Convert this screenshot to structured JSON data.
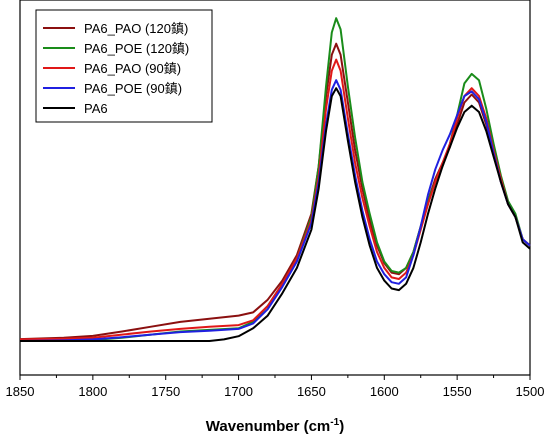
{
  "chart_data": {
    "type": "line",
    "title": "",
    "xlabel": "Wavenumber (cm",
    "xlabel_sup": "-1",
    "xlabel_close": ")",
    "ylabel": "",
    "xlim": [
      1850,
      1500
    ],
    "x_reversed": true,
    "ylim": [
      0,
      100
    ],
    "y_ticks_shown": false,
    "grid": false,
    "legend_position": "top-left",
    "x_ticks": [
      1850,
      1800,
      1750,
      1700,
      1650,
      1600,
      1550,
      1500
    ],
    "series": [
      {
        "name": "PA6_PAO (120鎮)",
        "color": "#8b1010",
        "points": [
          [
            1850,
            0.6
          ],
          [
            1820,
            1
          ],
          [
            1800,
            1.6
          ],
          [
            1780,
            3
          ],
          [
            1760,
            4.5
          ],
          [
            1740,
            6
          ],
          [
            1720,
            7
          ],
          [
            1700,
            8
          ],
          [
            1690,
            9
          ],
          [
            1680,
            13
          ],
          [
            1670,
            19
          ],
          [
            1660,
            27
          ],
          [
            1650,
            40
          ],
          [
            1645,
            55
          ],
          [
            1640,
            77
          ],
          [
            1636,
            90
          ],
          [
            1633,
            93.5
          ],
          [
            1630,
            90
          ],
          [
            1625,
            75
          ],
          [
            1620,
            60
          ],
          [
            1615,
            48
          ],
          [
            1610,
            38
          ],
          [
            1605,
            30
          ],
          [
            1600,
            24.5
          ],
          [
            1595,
            21.5
          ],
          [
            1590,
            21
          ],
          [
            1585,
            23
          ],
          [
            1580,
            28
          ],
          [
            1575,
            36
          ],
          [
            1570,
            44
          ],
          [
            1565,
            51
          ],
          [
            1560,
            56
          ],
          [
            1555,
            61
          ],
          [
            1550,
            68
          ],
          [
            1545,
            75
          ],
          [
            1540,
            77.5
          ],
          [
            1535,
            75
          ],
          [
            1530,
            68
          ],
          [
            1525,
            59
          ],
          [
            1520,
            50
          ],
          [
            1515,
            43
          ],
          [
            1510,
            39
          ],
          [
            1505,
            32
          ],
          [
            1500,
            30
          ]
        ]
      },
      {
        "name": "PA6_POE (120鎮)",
        "color": "#1a8c1a",
        "points": [
          [
            1850,
            0
          ],
          [
            1820,
            0
          ],
          [
            1800,
            0.3
          ],
          [
            1780,
            1
          ],
          [
            1760,
            2
          ],
          [
            1740,
            3
          ],
          [
            1720,
            3.5
          ],
          [
            1700,
            4
          ],
          [
            1690,
            6
          ],
          [
            1680,
            11
          ],
          [
            1670,
            18
          ],
          [
            1660,
            26
          ],
          [
            1650,
            39
          ],
          [
            1645,
            55
          ],
          [
            1640,
            80
          ],
          [
            1636,
            97
          ],
          [
            1633,
            101.5
          ],
          [
            1630,
            98
          ],
          [
            1625,
            80
          ],
          [
            1620,
            64
          ],
          [
            1615,
            50
          ],
          [
            1610,
            40
          ],
          [
            1605,
            31
          ],
          [
            1600,
            25
          ],
          [
            1595,
            22
          ],
          [
            1590,
            21.5
          ],
          [
            1585,
            23
          ],
          [
            1580,
            28
          ],
          [
            1575,
            36
          ],
          [
            1570,
            44
          ],
          [
            1565,
            50
          ],
          [
            1560,
            55
          ],
          [
            1555,
            62
          ],
          [
            1550,
            71
          ],
          [
            1545,
            81
          ],
          [
            1540,
            84
          ],
          [
            1535,
            82
          ],
          [
            1530,
            73
          ],
          [
            1525,
            62
          ],
          [
            1520,
            52
          ],
          [
            1515,
            44
          ],
          [
            1510,
            40
          ],
          [
            1505,
            32
          ],
          [
            1500,
            30
          ]
        ]
      },
      {
        "name": "PA6_PAO (90鎮)",
        "color": "#e01818",
        "points": [
          [
            1850,
            0.5
          ],
          [
            1820,
            0.7
          ],
          [
            1800,
            1
          ],
          [
            1780,
            2
          ],
          [
            1760,
            3
          ],
          [
            1740,
            3.8
          ],
          [
            1720,
            4.5
          ],
          [
            1700,
            5
          ],
          [
            1690,
            6.5
          ],
          [
            1680,
            11
          ],
          [
            1670,
            18
          ],
          [
            1660,
            26
          ],
          [
            1650,
            38
          ],
          [
            1645,
            52
          ],
          [
            1640,
            73
          ],
          [
            1636,
            85
          ],
          [
            1633,
            88.5
          ],
          [
            1630,
            85
          ],
          [
            1625,
            70
          ],
          [
            1620,
            56
          ],
          [
            1615,
            45
          ],
          [
            1610,
            36
          ],
          [
            1605,
            28
          ],
          [
            1600,
            23
          ],
          [
            1595,
            20
          ],
          [
            1590,
            19.5
          ],
          [
            1585,
            21.5
          ],
          [
            1580,
            27
          ],
          [
            1575,
            35
          ],
          [
            1570,
            43
          ],
          [
            1565,
            50
          ],
          [
            1560,
            56
          ],
          [
            1555,
            62
          ],
          [
            1550,
            70
          ],
          [
            1545,
            77
          ],
          [
            1540,
            79.5
          ],
          [
            1535,
            77
          ],
          [
            1530,
            70
          ],
          [
            1525,
            60
          ],
          [
            1520,
            51
          ],
          [
            1515,
            43
          ],
          [
            1510,
            39
          ],
          [
            1505,
            32
          ],
          [
            1500,
            30
          ]
        ]
      },
      {
        "name": "PA6_POE (90鎮)",
        "color": "#2020e0",
        "points": [
          [
            1850,
            0
          ],
          [
            1820,
            0.2
          ],
          [
            1800,
            0.5
          ],
          [
            1780,
            1.2
          ],
          [
            1760,
            2
          ],
          [
            1740,
            2.8
          ],
          [
            1720,
            3.2
          ],
          [
            1700,
            3.8
          ],
          [
            1690,
            5.5
          ],
          [
            1680,
            10
          ],
          [
            1670,
            17
          ],
          [
            1660,
            25
          ],
          [
            1650,
            37
          ],
          [
            1645,
            50
          ],
          [
            1640,
            68
          ],
          [
            1636,
            79
          ],
          [
            1633,
            82
          ],
          [
            1630,
            79
          ],
          [
            1625,
            65
          ],
          [
            1620,
            52
          ],
          [
            1615,
            41
          ],
          [
            1610,
            32
          ],
          [
            1605,
            25
          ],
          [
            1600,
            21
          ],
          [
            1595,
            18.5
          ],
          [
            1590,
            18
          ],
          [
            1585,
            20
          ],
          [
            1580,
            27
          ],
          [
            1575,
            36
          ],
          [
            1570,
            46
          ],
          [
            1565,
            54
          ],
          [
            1560,
            60
          ],
          [
            1555,
            65
          ],
          [
            1550,
            71
          ],
          [
            1545,
            77
          ],
          [
            1540,
            78.5
          ],
          [
            1535,
            76
          ],
          [
            1530,
            69
          ],
          [
            1525,
            59
          ],
          [
            1520,
            50
          ],
          [
            1515,
            43
          ],
          [
            1510,
            39
          ],
          [
            1505,
            32
          ],
          [
            1500,
            30
          ]
        ]
      },
      {
        "name": "PA6",
        "color": "#000000",
        "points": [
          [
            1850,
            0
          ],
          [
            1820,
            0
          ],
          [
            1800,
            0
          ],
          [
            1780,
            0
          ],
          [
            1760,
            0
          ],
          [
            1740,
            0
          ],
          [
            1720,
            0
          ],
          [
            1710,
            0.5
          ],
          [
            1700,
            1.5
          ],
          [
            1690,
            4
          ],
          [
            1680,
            8
          ],
          [
            1670,
            15
          ],
          [
            1660,
            23
          ],
          [
            1650,
            35
          ],
          [
            1645,
            48
          ],
          [
            1640,
            66
          ],
          [
            1636,
            77
          ],
          [
            1633,
            79.5
          ],
          [
            1630,
            77
          ],
          [
            1625,
            63
          ],
          [
            1620,
            50
          ],
          [
            1615,
            39
          ],
          [
            1610,
            30
          ],
          [
            1605,
            23
          ],
          [
            1600,
            19
          ],
          [
            1595,
            16.5
          ],
          [
            1590,
            16
          ],
          [
            1585,
            18
          ],
          [
            1580,
            23
          ],
          [
            1575,
            31
          ],
          [
            1570,
            40
          ],
          [
            1565,
            48
          ],
          [
            1560,
            55
          ],
          [
            1555,
            61
          ],
          [
            1550,
            67
          ],
          [
            1545,
            72
          ],
          [
            1540,
            74
          ],
          [
            1535,
            72
          ],
          [
            1530,
            66
          ],
          [
            1525,
            58
          ],
          [
            1520,
            50
          ],
          [
            1515,
            43
          ],
          [
            1510,
            39
          ],
          [
            1505,
            31
          ],
          [
            1500,
            29
          ]
        ]
      }
    ]
  }
}
